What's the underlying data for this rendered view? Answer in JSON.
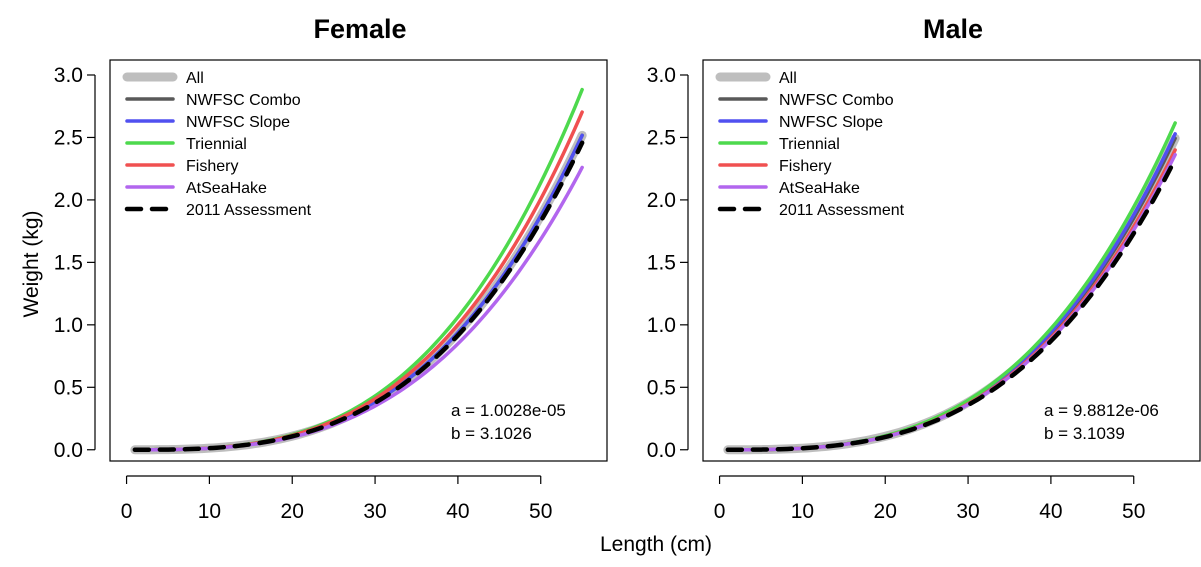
{
  "chart_data": [
    {
      "type": "line",
      "title": "Female",
      "xlabel": "Length (cm)",
      "ylabel": "Weight (kg)",
      "xlim": [
        1,
        55
      ],
      "ylim": [
        0,
        3.0
      ],
      "xticks": [
        "0",
        "10",
        "20",
        "30",
        "40",
        "50"
      ],
      "yticks": [
        "0.0",
        "0.5",
        "1.0",
        "1.5",
        "2.0",
        "2.5",
        "3.0"
      ],
      "legend_position": "top-left",
      "annotations": [
        "a = 1.0028e-05",
        "b = 3.1026"
      ],
      "series": [
        {
          "name": "All",
          "color": "#bebebe",
          "style": "solid",
          "a": 1.0028e-05,
          "b": 3.1026
        },
        {
          "name": "NWFSC Combo",
          "color": "#595959",
          "style": "solid",
          "a": 1.0028e-05,
          "b": 3.1026
        },
        {
          "name": "NWFSC Slope",
          "color": "#5050f0",
          "style": "solid",
          "a": 1.0028e-05,
          "b": 3.1026
        },
        {
          "name": "Triennial",
          "color": "#4dd94d",
          "style": "solid",
          "a": 1.0028e-05,
          "b": 3.1365
        },
        {
          "name": "Fishery",
          "color": "#f05050",
          "style": "solid",
          "a": 1.0028e-05,
          "b": 3.1204
        },
        {
          "name": "AtSeaHake",
          "color": "#b266ee",
          "style": "solid",
          "a": 1.0028e-05,
          "b": 3.0757
        },
        {
          "name": "2011 Assessment",
          "color": "#000000",
          "style": "dashed",
          "a": 1.0028e-05,
          "b": 3.0966
        }
      ]
    },
    {
      "type": "line",
      "title": "Male",
      "xlabel": "Length (cm)",
      "ylabel": "",
      "xlim": [
        1,
        55
      ],
      "ylim": [
        0,
        3.0
      ],
      "xticks": [
        "0",
        "10",
        "20",
        "30",
        "40",
        "50"
      ],
      "yticks": [
        "0.0",
        "0.5",
        "1.0",
        "1.5",
        "2.0",
        "2.5",
        "3.0"
      ],
      "legend_position": "top-left",
      "annotations": [
        "a = 9.8812e-06",
        "b = 3.1039"
      ],
      "series": [
        {
          "name": "All",
          "color": "#bebebe",
          "style": "solid",
          "a": 9.8812e-06,
          "b": 3.1039
        },
        {
          "name": "NWFSC Combo",
          "color": "#595959",
          "style": "solid",
          "a": 9.8812e-06,
          "b": 3.1039
        },
        {
          "name": "NWFSC Slope",
          "color": "#5050f0",
          "style": "solid",
          "a": 9.8812e-06,
          "b": 3.1075
        },
        {
          "name": "Triennial",
          "color": "#4dd94d",
          "style": "solid",
          "a": 9.8812e-06,
          "b": 3.1159
        },
        {
          "name": "Fishery",
          "color": "#f05050",
          "style": "solid",
          "a": 9.8812e-06,
          "b": 3.0944
        },
        {
          "name": "AtSeaHake",
          "color": "#b266ee",
          "style": "solid",
          "a": 9.8812e-06,
          "b": 3.0904
        },
        {
          "name": "2011 Assessment",
          "color": "#000000",
          "style": "dashed",
          "a": 9.8812e-06,
          "b": 3.0865
        }
      ]
    }
  ]
}
